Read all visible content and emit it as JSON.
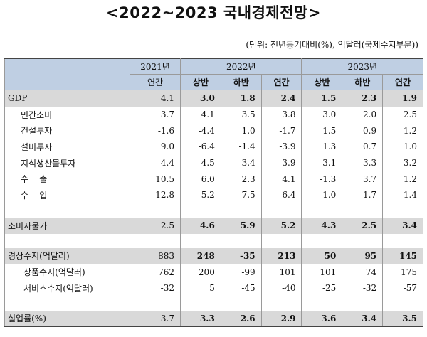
{
  "title": "<2022~2023 국내경제전망>",
  "unit_note": "(단위: 전년동기대비(%), 억달러(국제수지부문))",
  "header": {
    "col2021": "2021년",
    "col2022": "2022년",
    "col2023": "2023년",
    "annual": "연간",
    "h1": "상반",
    "h2": "하반"
  },
  "rows": [
    {
      "label": "GDP",
      "values": [
        "4.1",
        "3.0",
        "1.8",
        "2.4",
        "1.5",
        "2.3",
        "1.9"
      ]
    },
    {
      "label": "민간소비",
      "values": [
        "3.7",
        "4.1",
        "3.5",
        "3.8",
        "3.0",
        "2.0",
        "2.5"
      ]
    },
    {
      "label": "건설투자",
      "values": [
        "-1.6",
        "-4.4",
        "1.0",
        "-1.7",
        "1.5",
        "0.9",
        "1.2"
      ]
    },
    {
      "label": "설비투자",
      "values": [
        "9.0",
        "-6.4",
        "-1.4",
        "-3.9",
        "1.3",
        "0.7",
        "1.0"
      ]
    },
    {
      "label": "지식생산물투자",
      "values": [
        "4.4",
        "4.5",
        "3.4",
        "3.9",
        "3.1",
        "3.3",
        "3.2"
      ]
    },
    {
      "label": "수    출",
      "values": [
        "10.5",
        "6.0",
        "2.3",
        "4.1",
        "-1.3",
        "3.7",
        "1.2"
      ]
    },
    {
      "label": "수    입",
      "values": [
        "12.8",
        "5.2",
        "7.5",
        "6.4",
        "1.0",
        "1.7",
        "1.4"
      ]
    },
    {
      "label": "소비자물가",
      "values": [
        "2.5",
        "4.6",
        "5.9",
        "5.2",
        "4.3",
        "2.5",
        "3.4"
      ]
    },
    {
      "label": "경상수지(억달러)",
      "values": [
        "883",
        "248",
        "-35",
        "213",
        "50",
        "95",
        "145"
      ]
    },
    {
      "label": "상품수지(억달러)",
      "values": [
        "762",
        "200",
        "-99",
        "101",
        "101",
        "74",
        "175"
      ]
    },
    {
      "label": "서비스수지(억달러)",
      "values": [
        "-32",
        "5",
        "-45",
        "-40",
        "-25",
        "-32",
        "-57"
      ]
    },
    {
      "label": "실업률(%)",
      "values": [
        "3.7",
        "3.3",
        "2.6",
        "2.9",
        "3.6",
        "3.4",
        "3.5"
      ]
    }
  ]
}
